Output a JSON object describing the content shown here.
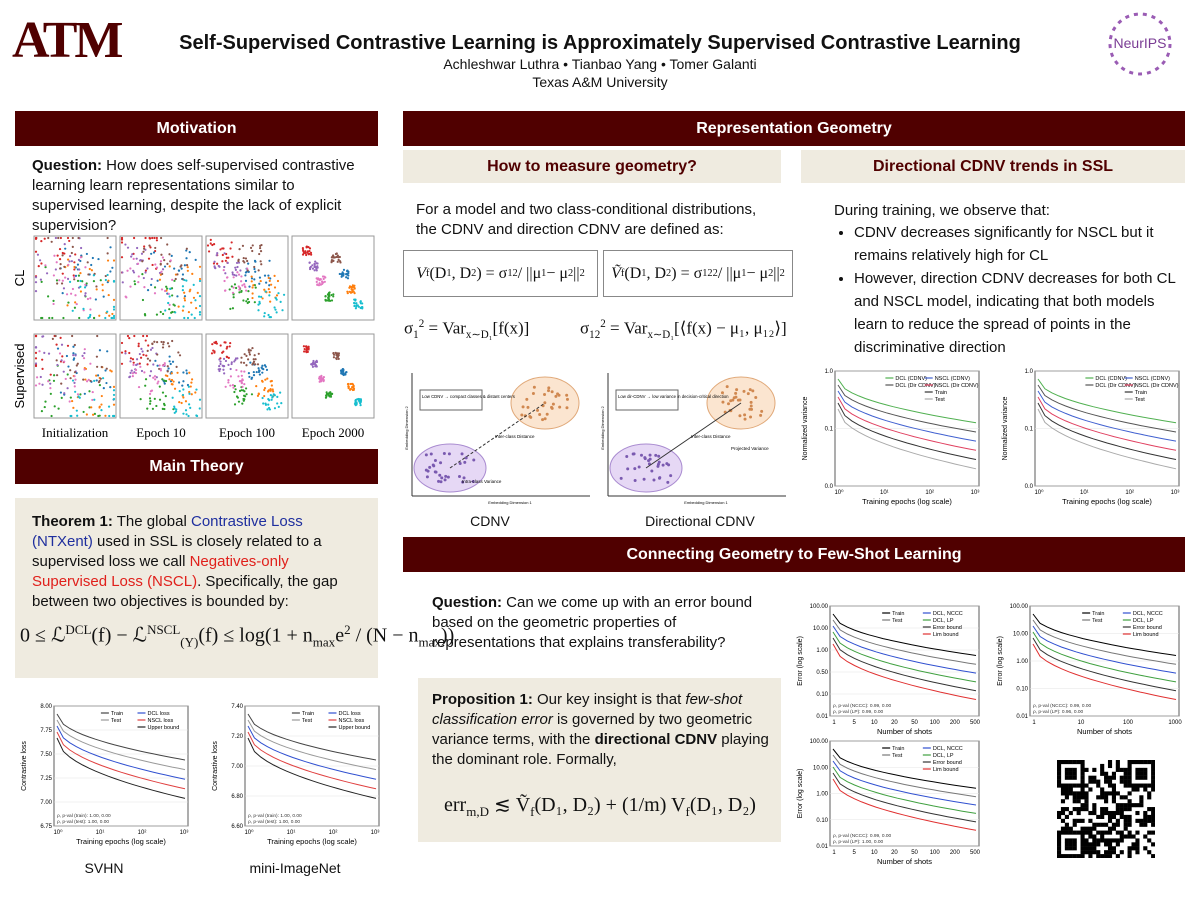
{
  "header": {
    "logo_left": "ATM",
    "logo_right": "NeurIPS",
    "title": "Self-Supervised Contrastive Learning is Approximately Supervised Contrastive Learning",
    "authors": "Achleshwar Luthra • Tianbao Yang • Tomer Galanti",
    "affiliation": "Texas A&M University"
  },
  "motivation": {
    "heading": "Motivation",
    "question": [
      {
        "text": "Question:",
        "b": true
      },
      {
        "text": " How does self-supervised contrastive learning learn representations similar to supervised learning, despite the lack of explicit supervision?"
      }
    ],
    "row_labels": [
      "CL",
      "Supervised"
    ],
    "col_labels": [
      "Initialization",
      "Epoch 10",
      "Epoch 100",
      "Epoch 2000"
    ]
  },
  "theory": {
    "heading": "Main Theory",
    "theorem": [
      {
        "text": "Theorem 1:",
        "b": true
      },
      {
        "text": " The global "
      },
      {
        "text": "Contrastive Loss (NTXent)",
        "color": "#1f2f9e"
      },
      {
        "text": " used in SSL is closely related to a supervised loss we call "
      },
      {
        "text": "Negatives-only Supervised Loss (NSCL)",
        "color": "#e0201b"
      },
      {
        "text": ". Specifically, the gap between two objectives is bounded by:"
      }
    ],
    "equation": [
      {
        "text": "0 ≤ ℒ"
      },
      {
        "text": "DCL",
        "sup": true
      },
      {
        "text": "(f) − ℒ"
      },
      {
        "text": "NSCL",
        "sup": true
      },
      {
        "text": "(Y)",
        "sub": true
      },
      {
        "text": "(f) ≤ log(1 + n"
      },
      {
        "text": "max",
        "sub": true
      },
      {
        "text": "e"
      },
      {
        "text": "2",
        "sup": true
      },
      {
        "text": " / (N − n"
      },
      {
        "text": "max",
        "sub": true
      },
      {
        "text": "))"
      }
    ],
    "plots": [
      {
        "caption": "SVHN",
        "ylabel": "Contrastive loss",
        "xlabel": "Training epochs (log scale)",
        "yticks": [
          "6.75",
          "7.00",
          "7.25",
          "7.50",
          "7.75",
          "8.00"
        ],
        "xticks": [
          "10⁰",
          "10¹",
          "10²",
          "10³"
        ],
        "legend": [
          {
            "name": "Train",
            "color": "#444444"
          },
          {
            "name": "Test",
            "color": "#999999"
          },
          {
            "name": "DCL loss",
            "color": "#3050d0"
          },
          {
            "name": "NSCL loss",
            "color": "#e04040"
          },
          {
            "name": "Upper bound",
            "color": "#222222"
          }
        ],
        "notes": [
          "ρ, p-val (train): 1.00, 0.00",
          "ρ, p-val (test): 1.00, 0.00"
        ]
      },
      {
        "caption": "mini-ImageNet",
        "ylabel": "Contrastive loss",
        "xlabel": "Training epochs (log scale)",
        "yticks": [
          "6.60",
          "6.80",
          "7.00",
          "7.20",
          "7.40"
        ],
        "xticks": [
          "10⁰",
          "10¹",
          "10²",
          "10³"
        ],
        "legend": [
          {
            "name": "Train",
            "color": "#444444"
          },
          {
            "name": "Test",
            "color": "#999999"
          },
          {
            "name": "DCL loss",
            "color": "#3050d0"
          },
          {
            "name": "NSCL loss",
            "color": "#e04040"
          },
          {
            "name": "Upper bound",
            "color": "#222222"
          }
        ],
        "notes": [
          "ρ, p-val (train): 1.00, 0.00",
          "ρ, p-val (test): 1.00, 0.00"
        ]
      }
    ]
  },
  "geometry": {
    "heading": "Representation Geometry",
    "measure": {
      "heading": "How to measure geometry?",
      "intro": "For a model and two class-conditional distributions, the CDNV and direction CDNV are defined as:",
      "eq_cdnv": [
        {
          "text": "V",
          "i": true
        },
        {
          "text": "f",
          "sub": true
        },
        {
          "text": "(D"
        },
        {
          "text": "1",
          "sub": true
        },
        {
          "text": ", D"
        },
        {
          "text": "2",
          "sub": true
        },
        {
          "text": ") = σ"
        },
        {
          "text": "1",
          "sub": true
        },
        {
          "text": "2",
          "sup": true
        },
        {
          "text": " / ||μ"
        },
        {
          "text": "1",
          "sub": true
        },
        {
          "text": " − μ"
        },
        {
          "text": "2",
          "sub": true
        },
        {
          "text": "||"
        },
        {
          "text": "2",
          "sup": true
        }
      ],
      "eq_dir": [
        {
          "text": "Ṽ",
          "i": true
        },
        {
          "text": "f",
          "sub": true
        },
        {
          "text": "(D"
        },
        {
          "text": "1",
          "sub": true
        },
        {
          "text": ", D"
        },
        {
          "text": "2",
          "sub": true
        },
        {
          "text": ") = σ"
        },
        {
          "text": "12",
          "sub": true
        },
        {
          "text": "2",
          "sup": true
        },
        {
          "text": " / ||μ"
        },
        {
          "text": "1",
          "sub": true
        },
        {
          "text": " − μ"
        },
        {
          "text": "2",
          "sub": true
        },
        {
          "text": "||"
        },
        {
          "text": "2",
          "sup": true
        }
      ],
      "eq_var": [
        {
          "text": "σ"
        },
        {
          "text": "1",
          "sub": true
        },
        {
          "text": "2",
          "sup": true
        },
        {
          "text": " = Var"
        },
        {
          "text": "x∼D₁",
          "sub": true
        },
        {
          "text": "[f(x)]"
        }
      ],
      "eq_dirvar": [
        {
          "text": "σ"
        },
        {
          "text": "12",
          "sub": true
        },
        {
          "text": "2",
          "sup": true
        },
        {
          "text": " = Var"
        },
        {
          "text": "x∼D₁",
          "sub": true
        },
        {
          "text": "[⟨f(x) − μ₁, μ₁₂⟩]"
        }
      ],
      "diagrams": [
        {
          "caption": "CDNV",
          "box": "Low CDNV → compact classes & distant centers",
          "inter": "Inter-class Distance",
          "intra": "Intra-class Variance",
          "xaxis": "Embedding Dimension 1",
          "yaxis": "Embedding Dimension 2"
        },
        {
          "caption": "Directional CDNV",
          "box": "Low dir-CDNV → low variance in decision-critical direction",
          "inter": "Inter-class Distance",
          "intra": "Projected Variance",
          "xaxis": "Embedding Dimension 1",
          "yaxis": "Embedding Dimension 2"
        }
      ]
    },
    "trends": {
      "heading": "Directional CDNV trends in SSL",
      "intro": "During training, we observe that:",
      "bullets": [
        "CDNV decreases significantly for NSCL but it remains relatively high for CL",
        "However, direction CDNV decreases for both CL and NSCL model, indicating that both models learn to reduce the spread of points in the discriminative direction"
      ],
      "plots": [
        {
          "ylabel": "Normalized variance",
          "xlabel": "Training epochs (log scale)",
          "yticks": [
            "0.0",
            "0.1",
            "1.0"
          ],
          "xticks": [
            "10⁰",
            "10¹",
            "10²",
            "10³"
          ],
          "legend": [
            {
              "name": "DCL (CDNV)",
              "color": "#50b050"
            },
            {
              "name": "DCL (Dir CDNV)",
              "color": "#555555"
            },
            {
              "name": "NSCL (CDNV)",
              "color": "#4060d0"
            },
            {
              "name": "NSCL (Dir CDNV)",
              "color": "#e04060"
            },
            {
              "name": "Train",
              "color": "#333333"
            },
            {
              "name": "Test",
              "color": "#aaaaaa"
            }
          ]
        },
        {
          "ylabel": "Normalized variance",
          "xlabel": "Training epochs (log scale)",
          "yticks": [
            "0.0",
            "0.1",
            "1.0"
          ],
          "xticks": [
            "10⁰",
            "10¹",
            "10²",
            "10³"
          ],
          "legend": [
            {
              "name": "DCL (CDNV)",
              "color": "#50b050"
            },
            {
              "name": "DCL (Dir CDNV)",
              "color": "#555555"
            },
            {
              "name": "NSCL (CDNV)",
              "color": "#4060d0"
            },
            {
              "name": "NSCL (Dir CDNV)",
              "color": "#e04060"
            },
            {
              "name": "Train",
              "color": "#333333"
            },
            {
              "name": "Test",
              "color": "#aaaaaa"
            }
          ]
        }
      ]
    }
  },
  "fewshot": {
    "heading": "Connecting Geometry to Few-Shot Learning",
    "question": [
      {
        "text": "Question:",
        "b": true
      },
      {
        "text": " Can we come up with an error bound based on the geometric properties of representations that explains transferability?"
      }
    ],
    "proposition": [
      {
        "text": "Proposition 1:",
        "b": true
      },
      {
        "text": " Our key insight is that "
      },
      {
        "text": "few-shot classification error",
        "i": true
      },
      {
        "text": " is governed by two geometric variance terms, with the "
      },
      {
        "text": "directional CDNV",
        "b": true
      },
      {
        "text": " playing the dominant role. Formally,"
      }
    ],
    "equation": [
      {
        "text": "err"
      },
      {
        "text": "m,D",
        "sub": true
      },
      {
        "text": " ≲ Ṽ"
      },
      {
        "text": "f",
        "sub": true
      },
      {
        "text": "(D₁, D₂) + (1/m) V"
      },
      {
        "text": "f",
        "sub": true
      },
      {
        "text": "(D₁, D₂)"
      }
    ],
    "plots": [
      {
        "ylabel": "Error (log scale)",
        "xlabel": "Number of shots",
        "yticks": [
          "0.01",
          "0.10",
          "0.50",
          "1.00",
          "10.00",
          "100.00"
        ],
        "xticks": [
          "1",
          "5",
          "10",
          "20",
          "50",
          "100",
          "200",
          "500"
        ],
        "legend": [
          {
            "name": "Train",
            "color": "#000000"
          },
          {
            "name": "Test",
            "color": "#777777"
          },
          {
            "name": "DCL, NCCC",
            "color": "#3050d0"
          },
          {
            "name": "DCL, LP",
            "color": "#40a040"
          },
          {
            "name": "Error bound",
            "color": "#333333"
          },
          {
            "name": "Lim bound",
            "color": "#e03030"
          }
        ],
        "notes": [
          "ρ, p-val (NCCC): 0.99, 0.00",
          "ρ, p-val (LP): 0.99, 0.00"
        ]
      },
      {
        "ylabel": "Error (log scale)",
        "xlabel": "Number of shots",
        "yticks": [
          "0.01",
          "0.10",
          "1.00",
          "10.00",
          "100.00"
        ],
        "xticks": [
          "1",
          "10",
          "100",
          "1000"
        ],
        "legend": [
          {
            "name": "Train",
            "color": "#000000"
          },
          {
            "name": "Test",
            "color": "#777777"
          },
          {
            "name": "DCL, NCCC",
            "color": "#3050d0"
          },
          {
            "name": "DCL, LP",
            "color": "#40a040"
          },
          {
            "name": "Error bound",
            "color": "#333333"
          },
          {
            "name": "Lim bound",
            "color": "#e03030"
          }
        ],
        "notes": [
          "ρ, p-val (NCCC): 0.99, 0.00",
          "ρ, p-val (LP): 0.96, 0.00"
        ]
      },
      {
        "ylabel": "Error (log scale)",
        "xlabel": "Number of shots",
        "yticks": [
          "0.01",
          "0.10",
          "1.00",
          "10.00",
          "100.00"
        ],
        "xticks": [
          "1",
          "5",
          "10",
          "20",
          "50",
          "100",
          "200",
          "500"
        ],
        "legend": [
          {
            "name": "Train",
            "color": "#000000"
          },
          {
            "name": "Test",
            "color": "#777777"
          },
          {
            "name": "DCL, NCCC",
            "color": "#3050d0"
          },
          {
            "name": "DCL, LP",
            "color": "#40a040"
          },
          {
            "name": "Error bound",
            "color": "#333333"
          },
          {
            "name": "Lim bound",
            "color": "#e03030"
          }
        ],
        "notes": [
          "ρ, p-val (NCCC): 0.99, 0.00",
          "ρ, p-val (LP): 1.00, 0.00"
        ]
      }
    ]
  }
}
